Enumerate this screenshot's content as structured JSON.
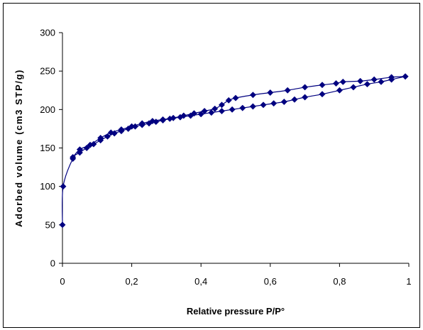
{
  "chart_data": {
    "type": "line",
    "title": "",
    "xlabel": "Relative pressure P/P°",
    "ylabel": "Adorbed volume (cm3 STP/g)",
    "xlim": [
      0,
      1
    ],
    "ylim": [
      0,
      300
    ],
    "x_ticks": [
      0,
      0.2,
      0.4,
      0.6,
      0.8,
      1
    ],
    "x_tick_labels": [
      "0",
      "0,2",
      "0,4",
      "0,6",
      "0,8",
      "1"
    ],
    "y_ticks": [
      0,
      50,
      100,
      150,
      200,
      250,
      300
    ],
    "y_tick_labels": [
      "0",
      "50",
      "100",
      "150",
      "200",
      "250",
      "300"
    ],
    "grid": false,
    "legend": "none",
    "colors": {
      "series": "#000080",
      "axis": "#000000"
    },
    "series": [
      {
        "x": [
          0.0,
          0.002,
          0.03,
          0.05,
          0.07,
          0.09,
          0.11,
          0.13,
          0.15,
          0.17,
          0.19,
          0.21,
          0.23,
          0.25,
          0.27,
          0.29,
          0.31,
          0.34,
          0.37,
          0.4,
          0.43,
          0.46,
          0.49,
          0.52,
          0.55,
          0.58,
          0.61,
          0.64,
          0.67,
          0.7,
          0.75,
          0.8,
          0.84,
          0.88,
          0.92,
          0.95,
          0.99
        ],
        "y": [
          50,
          100,
          136,
          144,
          150,
          155,
          160,
          165,
          169,
          172,
          175,
          178,
          180,
          182,
          184,
          186,
          188,
          190,
          192,
          194,
          196,
          198,
          200,
          202,
          204,
          206,
          208,
          210,
          213,
          216,
          220,
          225,
          229,
          233,
          236,
          239,
          243
        ]
      },
      {
        "x": [
          0.99,
          0.95,
          0.9,
          0.86,
          0.81,
          0.79,
          0.75,
          0.7,
          0.65,
          0.6,
          0.55,
          0.5,
          0.48,
          0.46,
          0.44,
          0.41,
          0.38,
          0.35,
          0.32,
          0.29,
          0.26,
          0.23,
          0.2,
          0.17,
          0.14,
          0.11,
          0.08,
          0.05,
          0.03
        ],
        "y": [
          243,
          242,
          239,
          237,
          236,
          234,
          232,
          229,
          225,
          222,
          219,
          215,
          212,
          206,
          201,
          198,
          195,
          192,
          189,
          187,
          185,
          182,
          178,
          174,
          170,
          163,
          154,
          148,
          138
        ]
      }
    ]
  }
}
